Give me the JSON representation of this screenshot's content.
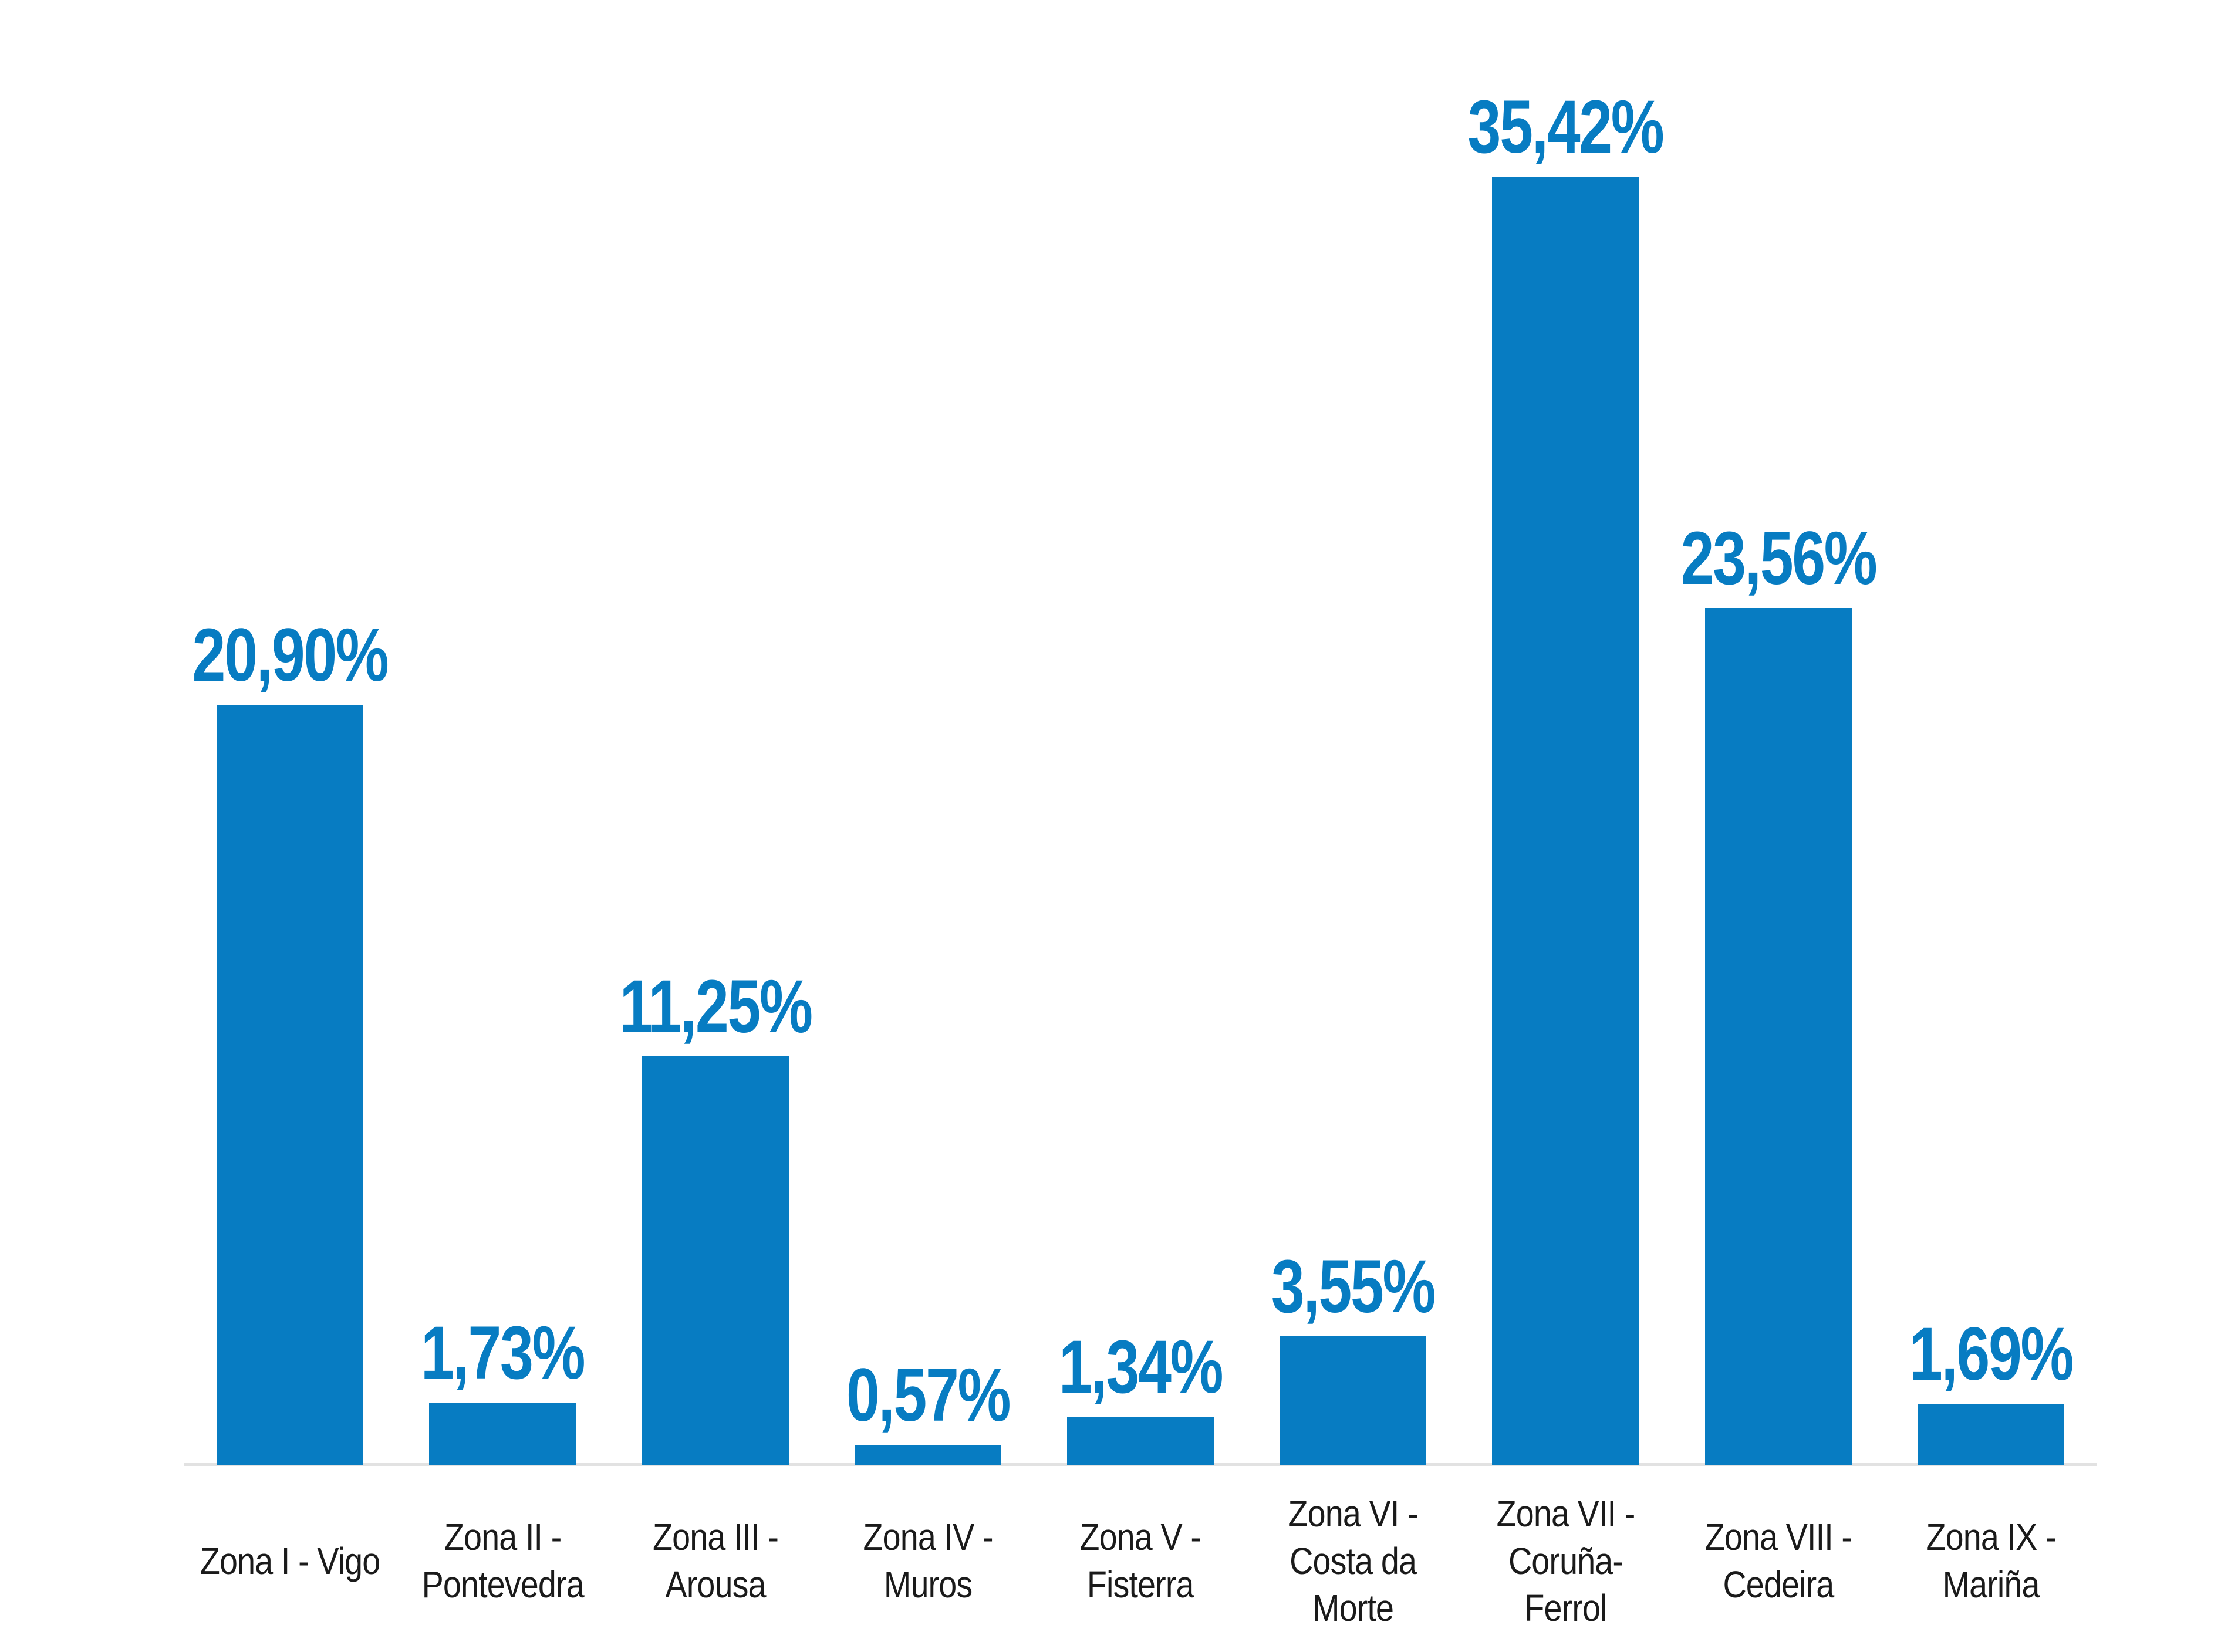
{
  "chart_data": {
    "type": "bar",
    "title": "",
    "xlabel": "",
    "ylabel": "",
    "categories": [
      "Zona I - Vigo",
      "Zona II - Pontevedra",
      "Zona III - Arousa",
      "Zona IV - Muros",
      "Zona V - Fisterra",
      "Zona VI - Costa da Morte",
      "Zona VII - Coruña-Ferrol",
      "Zona VIII - Cedeira",
      "Zona IX - Mariña"
    ],
    "values": [
      20.9,
      1.73,
      11.25,
      0.57,
      1.34,
      3.55,
      35.42,
      23.56,
      1.69
    ],
    "value_labels": [
      "20,90%",
      "1,73%",
      "11,25%",
      "0,57%",
      "1,34%",
      "3,55%",
      "35,42%",
      "23,56%",
      "1,69%"
    ],
    "category_lines": [
      [
        "Zona I - Vigo"
      ],
      [
        "Zona II -",
        "Pontevedra"
      ],
      [
        "Zona III -",
        "Arousa"
      ],
      [
        "Zona IV -",
        "Muros"
      ],
      [
        "Zona V -",
        "Fisterra"
      ],
      [
        "Zona VI -",
        "Costa da",
        "Morte"
      ],
      [
        "Zona VII -",
        "Coruña-",
        "Ferrol"
      ],
      [
        "Zona VIII -",
        "Cedeira"
      ],
      [
        "Zona IX -",
        "Mariña"
      ]
    ],
    "ylim": [
      0,
      38
    ],
    "grid": false,
    "legend": false,
    "bar_color": "#077cc2",
    "data_label_color": "#077cc2",
    "category_label_color": "#1a1a1a",
    "axis_line_color": "#e2e2e2",
    "background_color": "#ffffff"
  }
}
